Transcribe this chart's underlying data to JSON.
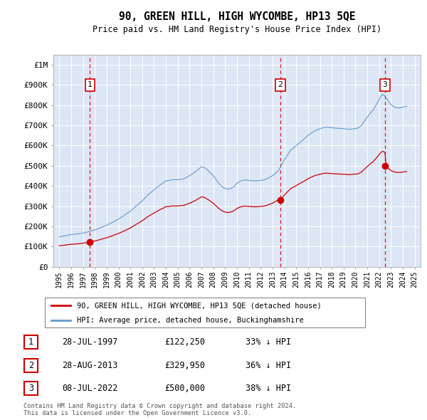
{
  "title": "90, GREEN HILL, HIGH WYCOMBE, HP13 5QE",
  "subtitle": "Price paid vs. HM Land Registry's House Price Index (HPI)",
  "background_color": "#dce6f5",
  "plot_bg_color": "#dce6f5",
  "hpi_color": "#6699cc",
  "price_color": "#cc0000",
  "grid_color": "#ffffff",
  "purchases": [
    {
      "year": 1997.58,
      "price": 122250,
      "label": "1"
    },
    {
      "year": 2013.66,
      "price": 329950,
      "label": "2"
    },
    {
      "year": 2022.5,
      "price": 500000,
      "label": "3"
    }
  ],
  "legend_entries": [
    "90, GREEN HILL, HIGH WYCOMBE, HP13 5QE (detached house)",
    "HPI: Average price, detached house, Buckinghamshire"
  ],
  "table_rows": [
    {
      "num": "1",
      "date": "28-JUL-1997",
      "price": "£122,250",
      "hpi": "33% ↓ HPI"
    },
    {
      "num": "2",
      "date": "28-AUG-2013",
      "price": "£329,950",
      "hpi": "36% ↓ HPI"
    },
    {
      "num": "3",
      "date": "08-JUL-2022",
      "price": "£500,000",
      "hpi": "38% ↓ HPI"
    }
  ],
  "footer": "Contains HM Land Registry data © Crown copyright and database right 2024.\nThis data is licensed under the Open Government Licence v3.0.",
  "ylim": [
    0,
    1050000
  ],
  "xlim": [
    1994.5,
    2025.5
  ],
  "yticks": [
    0,
    100000,
    200000,
    300000,
    400000,
    500000,
    600000,
    700000,
    800000,
    900000,
    1000000
  ],
  "ytick_labels": [
    "£0",
    "£100K",
    "£200K",
    "£300K",
    "£400K",
    "£500K",
    "£600K",
    "£700K",
    "£800K",
    "£900K",
    "£1M"
  ],
  "xticks": [
    1995,
    1996,
    1997,
    1998,
    1999,
    2000,
    2001,
    2002,
    2003,
    2004,
    2005,
    2006,
    2007,
    2008,
    2009,
    2010,
    2011,
    2012,
    2013,
    2014,
    2015,
    2016,
    2017,
    2018,
    2019,
    2020,
    2021,
    2022,
    2023,
    2024,
    2025
  ]
}
